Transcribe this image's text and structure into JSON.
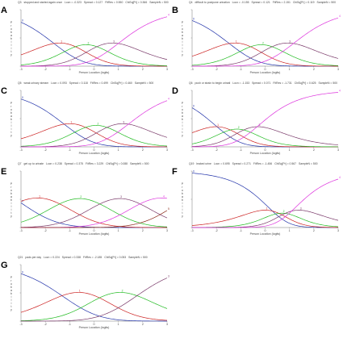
{
  "figure": {
    "ylabel": "Probability",
    "xlabel": "Person Location (logits)"
  },
  "chart_data": [
    {
      "letter": "A",
      "header": {
        "item": "Q3",
        "title": "stopped and started again once",
        "locn": "Locn = -0.323",
        "spread": "Spread = 0.127",
        "fitres": "FitRes = 0.550",
        "chisq": "ChiSq[Pr] = 0.366",
        "sample": "SampleN = 500"
      },
      "type": "line",
      "xlim": [
        -3,
        3
      ],
      "ylim": [
        0,
        1
      ],
      "x_ticks": [
        -3,
        -2,
        -1,
        0,
        1,
        2,
        3
      ],
      "threshold_spacing": 0.4,
      "max_label_index": 4
    },
    {
      "letter": "B",
      "header": {
        "item": "Q4",
        "title": "difficult to postpone urination",
        "locn": "Locn = -0.155",
        "spread": "Spread = 0.121",
        "fitres": "FitRes = 2.151",
        "chisq": "ChiSq[Pr] = 0.119",
        "sample": "SampleN = 500"
      },
      "type": "line",
      "xlim": [
        -3,
        3
      ],
      "ylim": [
        0,
        1
      ],
      "x_ticks": [
        -3,
        -2,
        -1,
        0,
        1,
        2,
        3
      ],
      "threshold_spacing": 0.4,
      "max_label_index": 4
    },
    {
      "letter": "C",
      "header": {
        "item": "Q5",
        "title": "weak urinary stream",
        "locn": "Locn = 0.093",
        "spread": "Spread = 0.118",
        "fitres": "FitRes = 0.499",
        "chisq": "ChiSq[Pr] = 0.460",
        "sample": "SampleN = 500"
      },
      "type": "line",
      "xlim": [
        -3,
        3
      ],
      "ylim": [
        0,
        1
      ],
      "x_ticks": [
        -3,
        -2,
        -1,
        0,
        1,
        2,
        3
      ],
      "threshold_spacing": 0.4,
      "max_label_index": 4
    },
    {
      "letter": "D",
      "header": {
        "item": "Q6",
        "title": "push or strain to begin urinati",
        "locn": "Locn = -1.153",
        "spread": "Spread = 0.071",
        "fitres": "FitRes = -1.731",
        "chisq": "ChiSq[Pr] = 0.625",
        "sample": "SampleN = 500"
      },
      "type": "line",
      "xlim": [
        -3,
        3
      ],
      "ylim": [
        0,
        1
      ],
      "x_ticks": [
        -3,
        -2,
        -1,
        0,
        1,
        2,
        3
      ],
      "threshold_spacing": 0.25,
      "max_label_index": 4
    },
    {
      "letter": "E",
      "header": {
        "item": "Q7",
        "title": "get up to urinate",
        "locn": "Locn = 0.238",
        "spread": "Spread = 0.375",
        "fitres": "FitRes = 3.229",
        "chisq": "ChiSq[Pr] = 0.088",
        "sample": "SampleN = 500"
      },
      "type": "line",
      "xlim": [
        -3,
        3
      ],
      "ylim": [
        0,
        1
      ],
      "x_ticks": [
        -3,
        -2,
        -1,
        0,
        1,
        2,
        3
      ],
      "threshold_spacing": 0.75,
      "max_label_index": 5
    },
    {
      "letter": "F",
      "header": {
        "item": "Q19",
        "title": "leaked urine",
        "locn": "Locn = 0.695",
        "spread": "Spread = 0.271",
        "fitres": "FitRes = -1.456",
        "chisq": "ChiSq[Pr] = 0.567",
        "sample": "SampleN = 500"
      },
      "type": "line",
      "xlim": [
        -3,
        3
      ],
      "ylim": [
        0,
        1
      ],
      "x_ticks": [
        -3,
        -2,
        -1,
        0,
        1,
        2,
        3
      ],
      "threshold_spacing": 0.12,
      "max_label_index": 4
    },
    {
      "letter": "G",
      "header": {
        "item": "Q21",
        "title": "pads per day",
        "locn": "Locn = 0.224",
        "spread": "Spread = 0.338",
        "fitres": "FitRes = -2.185",
        "chisq": "ChiSq[Pr] = 0.053",
        "sample": "SampleN = 500"
      },
      "type": "line",
      "xlim": [
        -3,
        3
      ],
      "ylim": [
        0,
        1
      ],
      "x_ticks": [
        -3,
        -2,
        -1,
        0,
        1,
        2,
        3
      ],
      "threshold_spacing": 0.7,
      "max_label_index": 3
    }
  ]
}
